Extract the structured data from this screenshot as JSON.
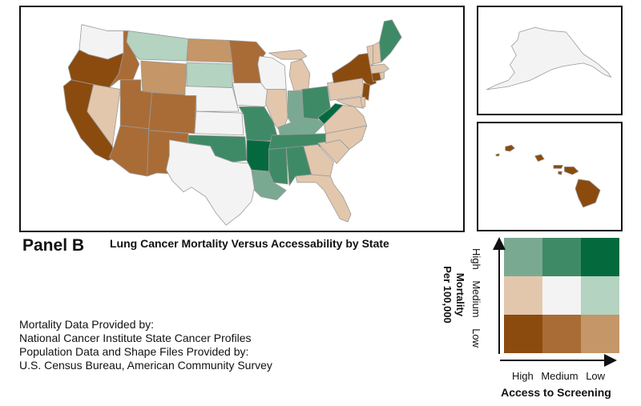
{
  "panel_label": "Panel B",
  "title": "Lung Cancer Mortality Versus Accessability by State",
  "credits": [
    "Mortality Data Provided by:",
    "National Cancer Institute State Cancer Profiles",
    "Population Data and Shape Files Provided by:",
    "U.S. Census Bureau, American Community Survey"
  ],
  "legend": {
    "y_title_line1": "Mortality",
    "y_title_line2": "Per 100,000",
    "y_levels": [
      "High",
      "Medium",
      "Low"
    ],
    "x_title": "Access to Screening",
    "x_levels": [
      "High",
      "Medium",
      "Low"
    ],
    "colors": {
      "high_mortality": [
        "#7aa991",
        "#3f8a66",
        "#046a3e"
      ],
      "medium_mortality": [
        "#e2c7ad",
        "#f3f3f3",
        "#b4d3c1"
      ],
      "low_mortality": [
        "#8b4b0e",
        "#a96c36",
        "#c49668"
      ]
    }
  },
  "map": {
    "insets": [
      "Alaska",
      "Hawaii"
    ],
    "state_classes": {
      "WA": "medium-medium",
      "OR": "low-high",
      "CA": "low-high",
      "NV": "medium-high",
      "ID": "low-medium",
      "MT": "medium-low",
      "WY": "low-low",
      "UT": "low-medium",
      "AZ": "low-medium",
      "CO": "low-medium",
      "NM": "low-medium",
      "ND": "low-low",
      "SD": "medium-low",
      "NE": "medium-medium",
      "KS": "medium-medium",
      "OK": "high-medium",
      "TX": "medium-medium",
      "MN": "low-medium",
      "IA": "medium-medium",
      "MO": "high-medium",
      "AR": "high-low",
      "LA": "high-high",
      "WI": "medium-medium",
      "IL": "medium-high",
      "MI": "medium-high",
      "IN": "high-high",
      "OH": "high-medium",
      "KY": "high-high",
      "TN": "high-medium",
      "MS": "high-medium",
      "AL": "high-medium",
      "GA": "medium-high",
      "FL": "medium-high",
      "SC": "medium-high",
      "NC": "medium-high",
      "VA": "medium-high",
      "WV": "high-low",
      "PA": "medium-high",
      "NY": "low-high",
      "NJ": "low-high",
      "MD": "medium-high",
      "DE": "medium-high",
      "CT": "low-high",
      "RI": "medium-high",
      "MA": "medium-high",
      "VT": "medium-high",
      "NH": "medium-high",
      "ME": "high-medium",
      "AK": "medium-medium",
      "HI": "low-high"
    }
  }
}
